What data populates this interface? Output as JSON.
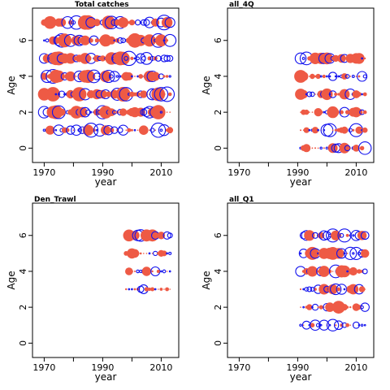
{
  "chart_data": [
    {
      "type": "scatter",
      "title": "Total catches",
      "xlabel": "year",
      "ylabel": "Age",
      "xlim": [
        1966,
        2016
      ],
      "ylim": [
        -0.8,
        7.8
      ],
      "xticks": [
        1970,
        1990,
        2010
      ],
      "xticks_minor": [
        1980,
        2000
      ],
      "yticks": [
        0,
        2,
        4,
        6
      ],
      "show_xtick_labels": true,
      "show_ytick_labels": true,
      "show_ylabel": true,
      "years": [
        1970,
        2013
      ],
      "ages": [
        1,
        2,
        3,
        4,
        5,
        6,
        7
      ],
      "seed": 11,
      "density": 1.0,
      "maxr": 9
    },
    {
      "type": "scatter",
      "title": "all_4Q",
      "xlabel": "year",
      "ylabel": "Age",
      "xlim": [
        1966,
        2016
      ],
      "ylim": [
        -0.8,
        7.8
      ],
      "xticks": [
        1970,
        1990,
        2010
      ],
      "xticks_minor": [
        1980,
        2000
      ],
      "yticks": [
        0,
        2,
        4,
        6
      ],
      "show_xtick_labels": true,
      "show_ytick_labels": true,
      "show_ylabel": true,
      "years": [
        1991,
        2013
      ],
      "ages": [
        0,
        1,
        2,
        3,
        4,
        5
      ],
      "seed": 23,
      "density": 1.0,
      "maxr": 8
    },
    {
      "type": "scatter",
      "title": "Den_Trawl",
      "xlabel": "year",
      "ylabel": "Age",
      "xlim": [
        1966,
        2016
      ],
      "ylim": [
        -0.8,
        7.8
      ],
      "xticks": [
        1970,
        1990,
        2010
      ],
      "xticks_minor": [
        1980,
        2000
      ],
      "yticks": [
        0,
        2,
        4,
        6
      ],
      "show_xtick_labels": true,
      "show_ytick_labels": true,
      "show_ylabel": true,
      "years": [
        1998,
        2013
      ],
      "ages": [
        3,
        4,
        5,
        6
      ],
      "seed": 37,
      "density": 1.0,
      "maxr": 8
    },
    {
      "type": "scatter",
      "title": "all_Q1",
      "xlabel": "year",
      "ylabel": "Age",
      "xlim": [
        1966,
        2016
      ],
      "ylim": [
        -0.8,
        7.8
      ],
      "xticks": [
        1970,
        1990,
        2010
      ],
      "xticks_minor": [
        1980,
        2000
      ],
      "yticks": [
        0,
        2,
        4,
        6
      ],
      "show_xtick_labels": true,
      "show_ytick_labels": true,
      "show_ylabel": true,
      "years": [
        1991,
        2013
      ],
      "ages": [
        1,
        2,
        3,
        4,
        5,
        6
      ],
      "seed": 53,
      "density": 1.0,
      "maxr": 8
    }
  ]
}
